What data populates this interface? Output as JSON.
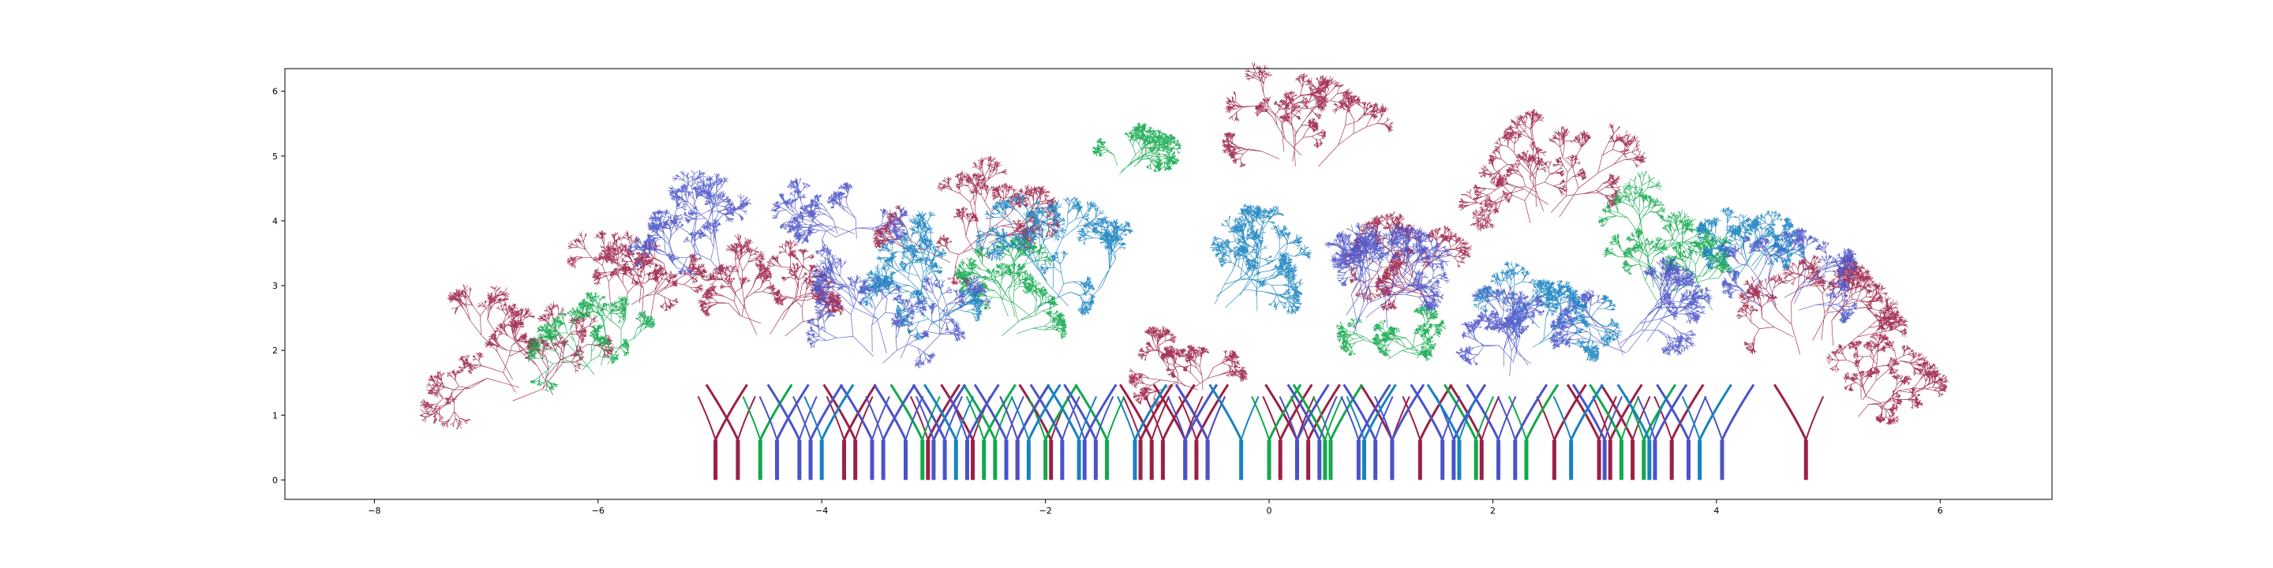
{
  "chart_data": {
    "type": "line",
    "title": "",
    "xlabel": "",
    "ylabel": "",
    "xlim": [
      -8.8,
      7.0
    ],
    "ylim": [
      -0.3,
      6.35
    ],
    "xticks": [
      -8,
      -6,
      -4,
      -2,
      0,
      2,
      4,
      6
    ],
    "yticks": [
      0,
      1,
      2,
      3,
      4,
      5,
      6
    ],
    "xtick_labels": [
      "−8",
      "−6",
      "−4",
      "−2",
      "0",
      "2",
      "4",
      "6"
    ],
    "ytick_labels": [
      "0",
      "1",
      "2",
      "3",
      "4",
      "5",
      "6"
    ],
    "grid": false,
    "legend": "none",
    "colors": {
      "crimson": "#9b2046",
      "green": "#12a84c",
      "indigo": "#4a53c8",
      "teal": "#1782c0",
      "axis": "#000000"
    },
    "series": [
      {
        "color": "crimson",
        "trunk_x": [
          -4.95,
          -4.75,
          -3.8,
          -3.7,
          -3.05,
          -2.65,
          -2.25,
          -1.95,
          -1.15,
          -1.05,
          -0.95,
          -0.75,
          -0.65,
          -0.55,
          0.1,
          0.25,
          0.35,
          1.1,
          1.35,
          1.9,
          2.55,
          2.95,
          3.05,
          3.25,
          3.6,
          4.8
        ],
        "trunk_height": 0.62
      },
      {
        "color": "green",
        "trunk_x": [
          -4.55,
          -3.1,
          -2.55,
          -2.45,
          -2.0,
          -1.45,
          0.0,
          0.5,
          0.55,
          1.85,
          2.3,
          3.15,
          3.35
        ],
        "trunk_height": 0.62
      },
      {
        "color": "indigo",
        "trunk_x": [
          -4.4,
          -4.2,
          -4.1,
          -3.55,
          -3.45,
          -3.25,
          -3.0,
          -2.9,
          -2.7,
          -2.35,
          -2.25,
          -1.85,
          -1.65,
          -1.55,
          -0.75,
          -0.55,
          0.25,
          0.45,
          0.8,
          0.95,
          1.1,
          1.55,
          1.65,
          2.05,
          2.2,
          3.0,
          3.45,
          3.75,
          4.05
        ],
        "trunk_height": 0.62
      },
      {
        "color": "teal",
        "trunk_x": [
          -4.0,
          -2.8,
          -2.15,
          -1.7,
          -1.2,
          -0.25,
          0.85,
          1.7,
          2.7,
          3.4,
          3.85
        ],
        "trunk_height": 0.62
      }
    ],
    "crowns": [
      {
        "color": "crimson",
        "x": -6.6,
        "y": 1.5,
        "spread": 0.95
      },
      {
        "color": "crimson",
        "x": -5.7,
        "y": 2.75,
        "spread": 0.9
      },
      {
        "color": "crimson",
        "x": -4.5,
        "y": 2.5,
        "spread": 0.9
      },
      {
        "color": "crimson",
        "x": -2.7,
        "y": 3.6,
        "spread": 0.8
      },
      {
        "color": "crimson",
        "x": 0.3,
        "y": 5.1,
        "spread": 0.85
      },
      {
        "color": "crimson",
        "x": 2.6,
        "y": 4.3,
        "spread": 1.1
      },
      {
        "color": "crimson",
        "x": 4.9,
        "y": 2.2,
        "spread": 1.0
      },
      {
        "color": "crimson",
        "x": 5.4,
        "y": 1.2,
        "spread": 0.75
      },
      {
        "color": "crimson",
        "x": 1.5,
        "y": 2.9,
        "spread": 0.9
      },
      {
        "color": "crimson",
        "x": -0.7,
        "y": 1.6,
        "spread": 0.7
      },
      {
        "color": "green",
        "x": -6.0,
        "y": 1.8,
        "spread": 0.7
      },
      {
        "color": "green",
        "x": -1.3,
        "y": 4.9,
        "spread": 0.6
      },
      {
        "color": "green",
        "x": -2.3,
        "y": 2.5,
        "spread": 0.9
      },
      {
        "color": "green",
        "x": 3.7,
        "y": 2.9,
        "spread": 1.1
      },
      {
        "color": "green",
        "x": 1.2,
        "y": 2.0,
        "spread": 0.6
      },
      {
        "color": "indigo",
        "x": -5.0,
        "y": 3.4,
        "spread": 0.8
      },
      {
        "color": "indigo",
        "x": -3.8,
        "y": 3.9,
        "spread": 0.7
      },
      {
        "color": "indigo",
        "x": -3.3,
        "y": 2.1,
        "spread": 1.0
      },
      {
        "color": "indigo",
        "x": 0.9,
        "y": 2.5,
        "spread": 1.0
      },
      {
        "color": "indigo",
        "x": 3.3,
        "y": 2.2,
        "spread": 1.0
      },
      {
        "color": "indigo",
        "x": 4.6,
        "y": 2.8,
        "spread": 0.8
      },
      {
        "color": "indigo",
        "x": 2.2,
        "y": 1.8,
        "spread": 0.8
      },
      {
        "color": "teal",
        "x": -1.8,
        "y": 3.0,
        "spread": 1.15
      },
      {
        "color": "teal",
        "x": -0.3,
        "y": 2.9,
        "spread": 1.0
      },
      {
        "color": "teal",
        "x": -3.0,
        "y": 2.6,
        "spread": 0.9
      },
      {
        "color": "teal",
        "x": 2.4,
        "y": 2.3,
        "spread": 0.8
      },
      {
        "color": "teal",
        "x": 4.2,
        "y": 3.3,
        "spread": 0.6
      }
    ]
  }
}
